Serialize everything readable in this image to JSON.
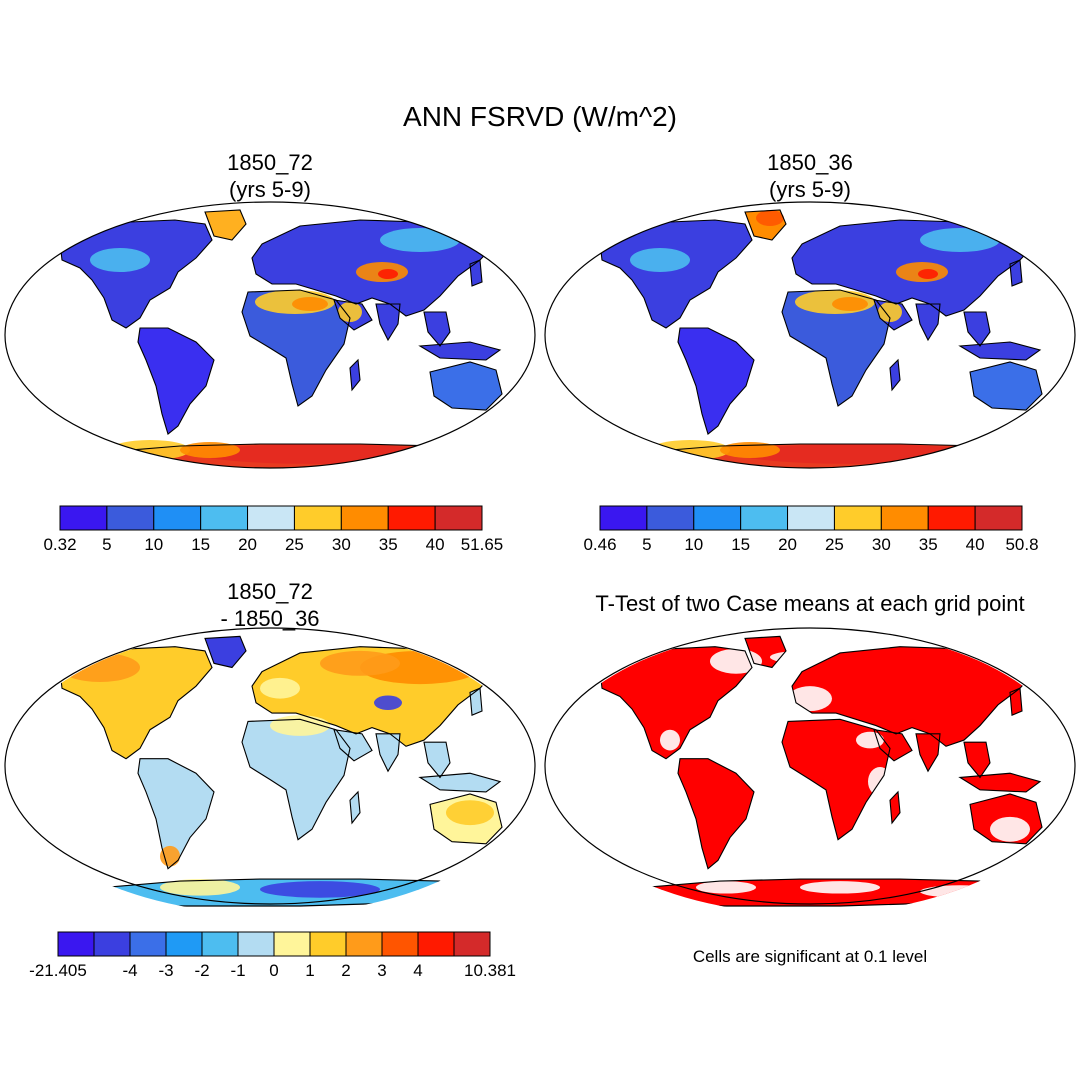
{
  "title": "ANN FSRVD (W/m^2)",
  "panels": [
    {
      "id": "p1",
      "title_lines": [
        "1850_72",
        "(yrs 5-9)"
      ],
      "colorbar": {
        "colors": [
          "#3a17f0",
          "#3b5bdc",
          "#1f8ff5",
          "#4dbdf0",
          "#c9e6f5",
          "#ffcc2a",
          "#ff8c00",
          "#ff1a00",
          "#d42a2a"
        ],
        "labels": [
          "0.32",
          "5",
          "10",
          "15",
          "20",
          "25",
          "30",
          "35",
          "40",
          "51.65"
        ]
      }
    },
    {
      "id": "p2",
      "title_lines": [
        "1850_36",
        "(yrs 5-9)"
      ],
      "colorbar": {
        "colors": [
          "#3a17f0",
          "#3b5bdc",
          "#1f8ff5",
          "#4dbdf0",
          "#c9e6f5",
          "#ffcc2a",
          "#ff8c00",
          "#ff1a00",
          "#d42a2a"
        ],
        "labels": [
          "0.46",
          "5",
          "10",
          "15",
          "20",
          "25",
          "30",
          "35",
          "40",
          "50.8"
        ]
      }
    },
    {
      "id": "p3",
      "title_lines": [
        "1850_72",
        "- 1850_36"
      ],
      "colorbar": {
        "colors": [
          "#3a17f0",
          "#3b3fe0",
          "#3b6fe8",
          "#1f9af5",
          "#4dbdf0",
          "#b3dcf2",
          "#fff59a",
          "#ffcc2a",
          "#ff9b1a",
          "#ff5500",
          "#ff1a00",
          "#d42a2a"
        ],
        "labels": [
          "-21.405",
          "",
          "-4",
          "-3",
          "-2",
          "-1",
          "0",
          "1",
          "2",
          "3",
          "4",
          "",
          "10.381"
        ]
      }
    },
    {
      "id": "p4",
      "title_lines": [
        "T-Test of two Case means at each grid point"
      ],
      "note": "Cells are significant at 0.1 level"
    }
  ]
}
